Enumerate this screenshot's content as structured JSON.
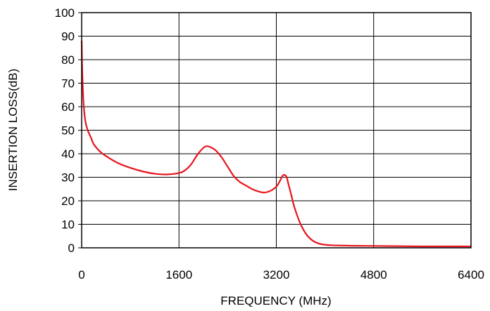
{
  "chart_data": {
    "type": "line",
    "title": "",
    "xlabel": "FREQUENCY (MHz)",
    "ylabel": "INSERTION LOSS(dB)",
    "xlim": [
      0,
      6400
    ],
    "ylim": [
      0,
      100
    ],
    "x_ticks": [
      0,
      1600,
      3200,
      4800,
      6400
    ],
    "y_ticks": [
      0,
      10,
      20,
      30,
      40,
      50,
      60,
      70,
      80,
      90,
      100
    ],
    "grid": true,
    "legend": "none",
    "series": [
      {
        "color": "#e8141c",
        "x": [
          0,
          10,
          30,
          60,
          100,
          150,
          200,
          300,
          400,
          600,
          800,
          1000,
          1200,
          1400,
          1600,
          1700,
          1800,
          1900,
          2000,
          2050,
          2100,
          2200,
          2300,
          2400,
          2500,
          2600,
          2700,
          2800,
          2900,
          3000,
          3100,
          3200,
          3260,
          3300,
          3340,
          3370,
          3400,
          3450,
          3500,
          3600,
          3700,
          3800,
          3900,
          4000,
          4100,
          4200,
          4400,
          4800,
          5200,
          5600,
          6000,
          6400
        ],
        "y": [
          88,
          75,
          62,
          54,
          50,
          47,
          44,
          41,
          39,
          36,
          34,
          32.5,
          31.5,
          31.2,
          31.8,
          33,
          35.5,
          39.5,
          42.5,
          43.2,
          43,
          41.5,
          38.5,
          34.5,
          30.5,
          28,
          26.5,
          25,
          24,
          23.5,
          24.2,
          26,
          28.5,
          30.5,
          31,
          30,
          27,
          22,
          17,
          10,
          5.5,
          3,
          1.8,
          1.3,
          1.1,
          1,
          0.9,
          0.8,
          0.7,
          0.6,
          0.6,
          0.6
        ]
      }
    ]
  }
}
